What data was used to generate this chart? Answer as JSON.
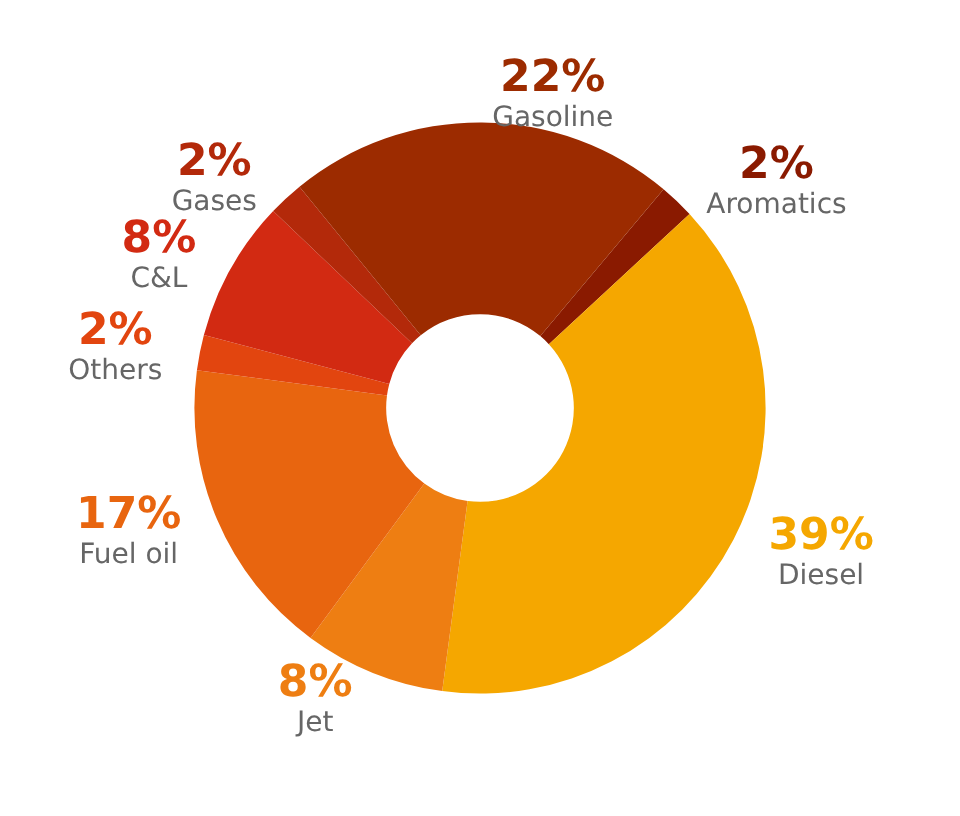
{
  "chart_data": {
    "type": "donut",
    "categories": [
      "Aromatics",
      "Diesel",
      "Jet",
      "Fuel oil",
      "Others",
      "C&L",
      "Gases",
      "Gasoline"
    ],
    "values": [
      2,
      39,
      8,
      17,
      2,
      8,
      2,
      22
    ],
    "colors": [
      "#8a1a00",
      "#f5a700",
      "#ee7e12",
      "#e8650f",
      "#e2450f",
      "#d22a12",
      "#b3290a",
      "#9c2b00"
    ],
    "value_labels": [
      "2%",
      "39%",
      "8%",
      "17%",
      "2%",
      "8%",
      "2%",
      "22%"
    ]
  }
}
